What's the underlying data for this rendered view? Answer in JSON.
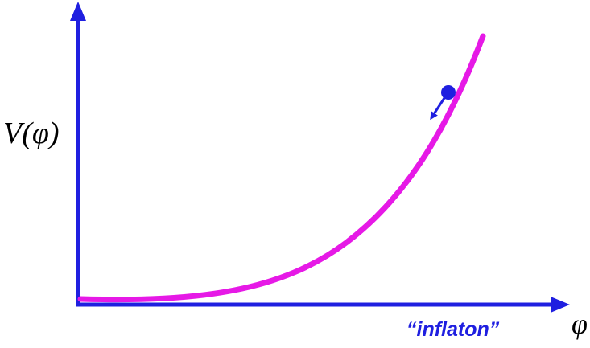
{
  "axes": {
    "y_label": "V(φ)",
    "x_label": "φ"
  },
  "annotation": "“inflaton”"
}
